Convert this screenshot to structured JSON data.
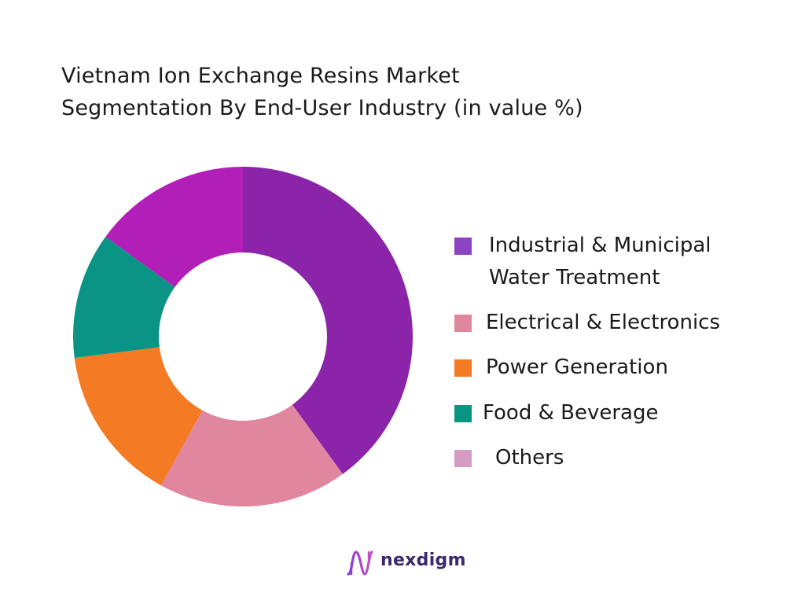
{
  "title_lines": [
    "Vietnam Ion Exchange Resins Market",
    "Segmentation By End-User Industry (in value %)"
  ],
  "chart_data": {
    "type": "pie",
    "variant": "donut",
    "title": "Vietnam Ion Exchange Resins Market Segmentation By End-User Industry (in value %)",
    "slices": [
      {
        "label": "Industrial & Municipal Water Treatment",
        "value": 40,
        "color": "#8b24a8"
      },
      {
        "label": "Electrical & Electronics",
        "value": 18,
        "color": "#e0879f"
      },
      {
        "label": "Power Generation",
        "value": 15,
        "color": "#f47a24"
      },
      {
        "label": "Food & Beverage",
        "value": 12,
        "color": "#099485"
      },
      {
        "label": "Others",
        "value": 15,
        "color": "#b21eb8"
      }
    ],
    "legend_position": "right"
  },
  "legend": {
    "items": [
      {
        "lines": [
          "Industrial & Municipal",
          "Water Treatment"
        ],
        "color": "#8b45c4"
      },
      {
        "lines": [
          "Electrical & Electronics"
        ],
        "color": "#e0879f"
      },
      {
        "lines": [
          "Power Generation"
        ],
        "color": "#f47a24"
      },
      {
        "lines": [
          "Food & Beverage"
        ],
        "color": "#099485"
      },
      {
        "lines": [
          "Others"
        ],
        "color": "#d49bc4"
      }
    ]
  },
  "brand": {
    "name": "nexdigm",
    "logo_icon": "nexdigm-wave-logo-icon"
  }
}
